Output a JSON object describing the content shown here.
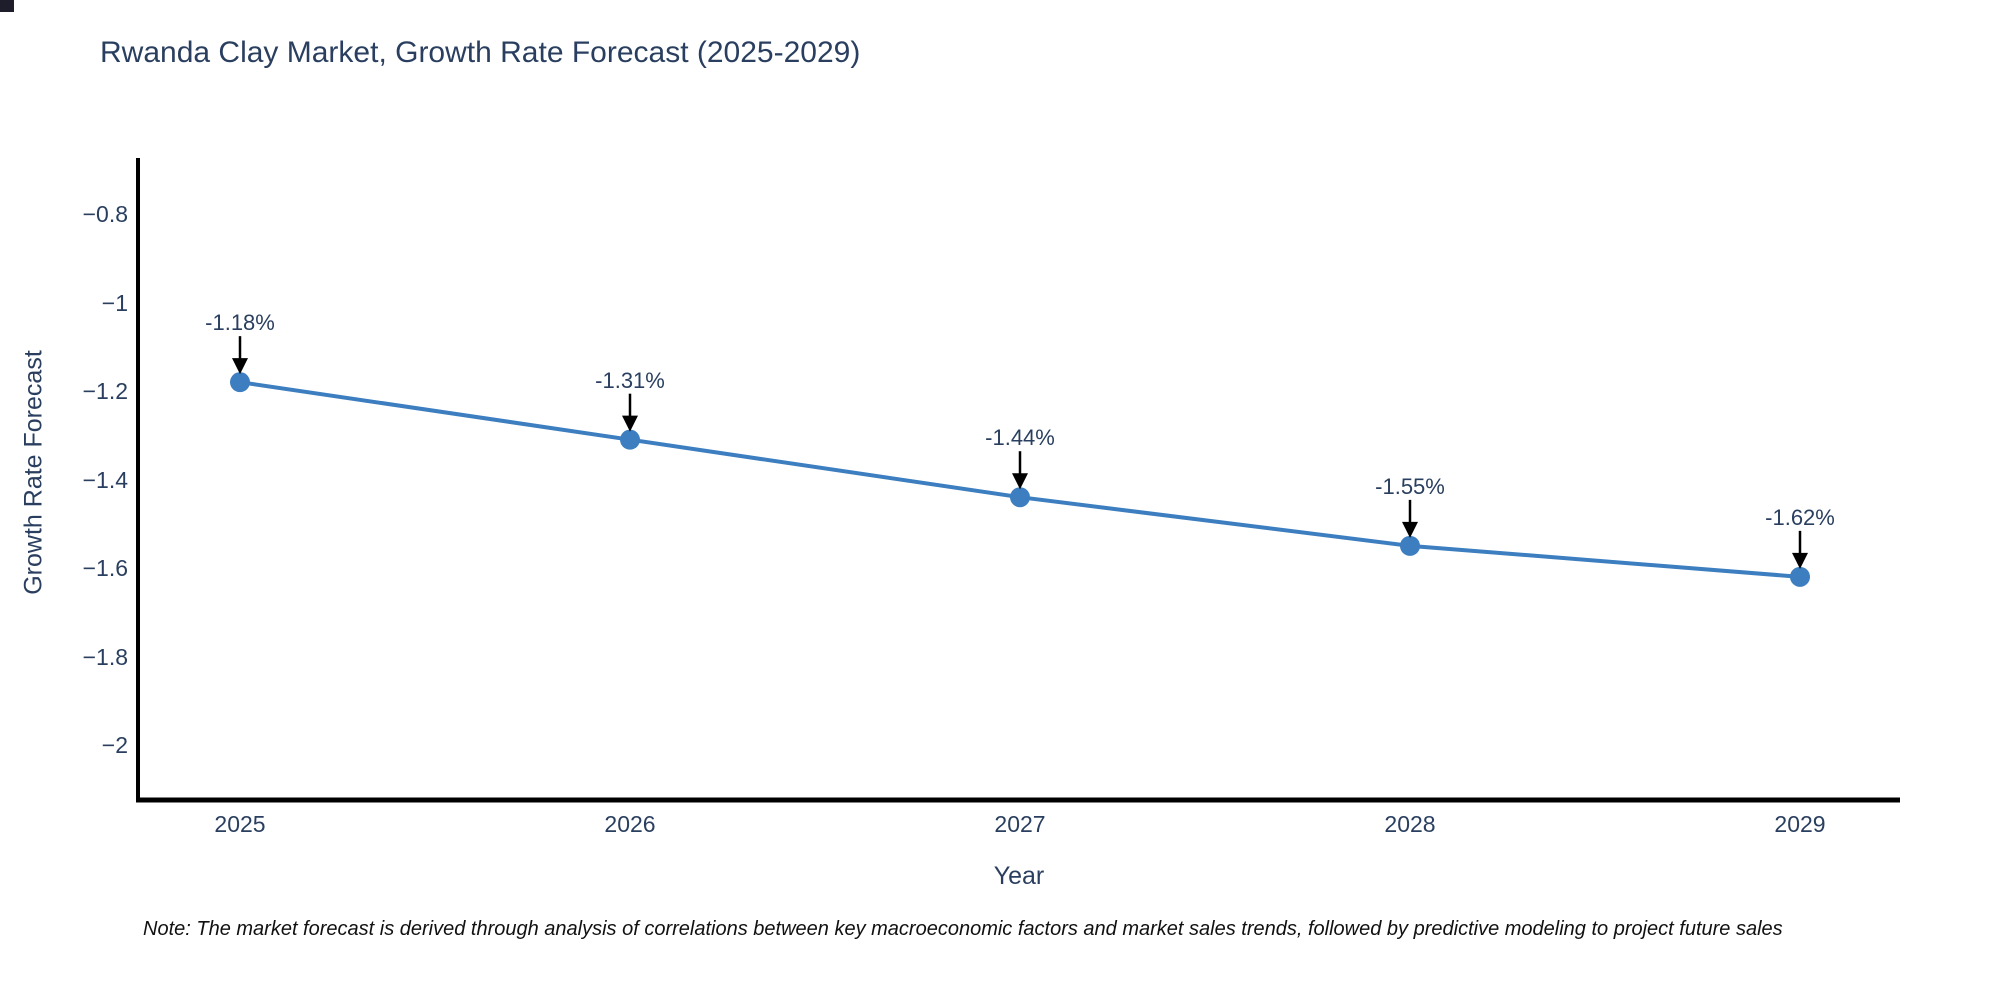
{
  "page": {
    "background": "#ffffff"
  },
  "chart_data": {
    "type": "line",
    "title": "Rwanda Clay Market, Growth Rate Forecast (2025-2029)",
    "xlabel": "Year",
    "ylabel": "Growth Rate Forecast",
    "x": [
      2025,
      2026,
      2027,
      2028,
      2029
    ],
    "series": [
      {
        "name": "Growth Rate Forecast",
        "values": [
          -1.18,
          -1.31,
          -1.44,
          -1.55,
          -1.62
        ]
      }
    ],
    "point_annotations": [
      "-1.18%",
      "-1.31%",
      "-1.44%",
      "-1.55%",
      "-1.62%"
    ],
    "x_tick_labels": [
      "2025",
      "2026",
      "2027",
      "2028",
      "2029"
    ],
    "y_tick_labels": [
      "−0.8",
      "−1",
      "−1.2",
      "−1.4",
      "−1.6",
      "−1.8",
      "−2"
    ],
    "y_tick_values": [
      -0.8,
      -1,
      -1.2,
      -1.4,
      -1.6,
      -1.8,
      -2
    ],
    "ylim": [
      -2.12,
      -0.68
    ],
    "xlim_padding": "points inset from axis ends",
    "grid": false,
    "legend": "none",
    "marker_style": "filled-circle",
    "annotation_arrow": "down-arrow-to-point",
    "colors": {
      "line": "#3c7ebf",
      "marker": "#3c7ebf",
      "arrow": "#000000",
      "axis": "#000000",
      "text": "#2a3f5f"
    }
  },
  "footnote": {
    "text": "Note: The market forecast is derived through analysis of correlations between key macroeconomic factors and market sales trends, followed by predictive modeling to project future sales"
  }
}
